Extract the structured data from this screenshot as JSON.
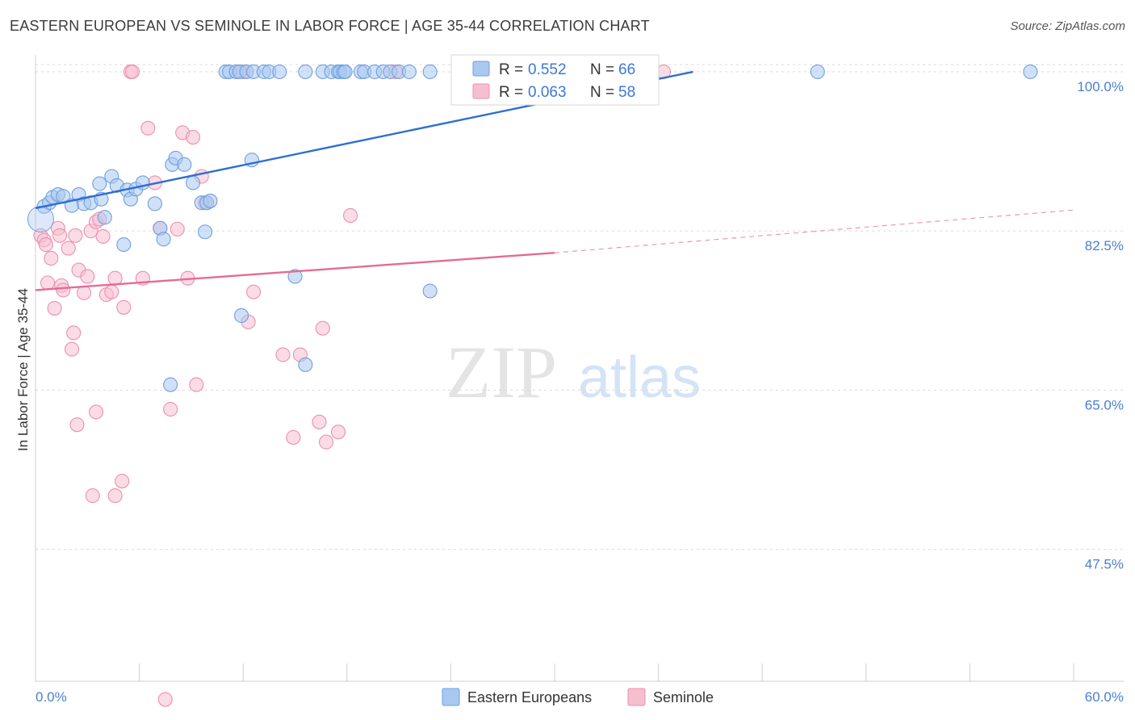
{
  "title": "EASTERN EUROPEAN VS SEMINOLE IN LABOR FORCE | AGE 35-44 CORRELATION CHART",
  "source": "Source: ZipAtlas.com",
  "watermark": {
    "zip": "ZIP",
    "atlas": "atlas"
  },
  "colors": {
    "blue_fill": "#a9c8f0",
    "blue_stroke": "#6f9fe0",
    "blue_line": "#2f6fd0",
    "pink_fill": "#f6bfd0",
    "pink_stroke": "#ec8fb0",
    "pink_line": "#e56a96",
    "grid": "#d9d9d9",
    "tick_text": "#4a7fd0"
  },
  "chart_data": {
    "type": "scatter",
    "title": "EASTERN EUROPEAN VS SEMINOLE IN LABOR FORCE | AGE 35-44 CORRELATION CHART",
    "xlabel": "",
    "ylabel": "In Labor Force | Age 35-44",
    "xlim": [
      0,
      60
    ],
    "ylim": [
      33,
      101.5
    ],
    "x_tick_labels": [
      "0.0%",
      "60.0%"
    ],
    "y_ticks": [
      47.5,
      65.0,
      82.5,
      100.0
    ],
    "y_tick_labels": [
      "47.5%",
      "65.0%",
      "82.5%",
      "100.0%"
    ],
    "grid": true,
    "legend": {
      "placement": "top-center",
      "entries": [
        {
          "r_label": "R = ",
          "r_value": "0.552",
          "n_label": "N = ",
          "n_value": "66"
        },
        {
          "r_label": "R = ",
          "r_value": "0.063",
          "n_label": "N = ",
          "n_value": "58"
        }
      ]
    },
    "series": [
      {
        "name": "Eastern Europeans",
        "trend": {
          "x0": 0,
          "y0": 85.0,
          "x1": 38,
          "y1": 100.0,
          "dashed_to": null
        },
        "points": [
          [
            0.5,
            85.2
          ],
          [
            0.8,
            85.6
          ],
          [
            1.0,
            86.2
          ],
          [
            1.3,
            86.5
          ],
          [
            1.6,
            86.3
          ],
          [
            2.1,
            85.3
          ],
          [
            2.5,
            86.5
          ],
          [
            2.8,
            85.5
          ],
          [
            3.2,
            85.6
          ],
          [
            3.7,
            87.7
          ],
          [
            3.8,
            86.0
          ],
          [
            4.0,
            84.0
          ],
          [
            4.4,
            88.5
          ],
          [
            4.7,
            87.5
          ],
          [
            5.1,
            81.0
          ],
          [
            5.3,
            87.0
          ],
          [
            5.5,
            86.0
          ],
          [
            5.8,
            87.1
          ],
          [
            6.2,
            87.8
          ],
          [
            6.9,
            85.5
          ],
          [
            7.2,
            82.8
          ],
          [
            7.4,
            81.6
          ],
          [
            7.8,
            65.6
          ],
          [
            7.9,
            89.8
          ],
          [
            8.1,
            90.5
          ],
          [
            8.6,
            89.8
          ],
          [
            9.1,
            87.8
          ],
          [
            9.6,
            85.6
          ],
          [
            9.8,
            82.4
          ],
          [
            9.9,
            85.6
          ],
          [
            10.1,
            85.8
          ],
          [
            11.0,
            100
          ],
          [
            11.2,
            100
          ],
          [
            11.6,
            100
          ],
          [
            11.8,
            100
          ],
          [
            11.9,
            73.2
          ],
          [
            12.2,
            100
          ],
          [
            12.5,
            90.3
          ],
          [
            12.6,
            100
          ],
          [
            13.2,
            100
          ],
          [
            13.5,
            100
          ],
          [
            14.1,
            100
          ],
          [
            15.0,
            77.5
          ],
          [
            15.6,
            100
          ],
          [
            15.6,
            67.8
          ],
          [
            16.6,
            100
          ],
          [
            17.1,
            100
          ],
          [
            17.5,
            100
          ],
          [
            17.6,
            100
          ],
          [
            17.8,
            100
          ],
          [
            17.9,
            100
          ],
          [
            18.8,
            100
          ],
          [
            19.0,
            100
          ],
          [
            19.6,
            100
          ],
          [
            20.1,
            100
          ],
          [
            20.5,
            100
          ],
          [
            21.0,
            100
          ],
          [
            21.6,
            100
          ],
          [
            22.8,
            75.9
          ],
          [
            24.6,
            100
          ],
          [
            25.0,
            100
          ],
          [
            22.8,
            100
          ],
          [
            33.6,
            100
          ],
          [
            34.1,
            100
          ],
          [
            45.2,
            100
          ],
          [
            57.5,
            100
          ]
        ]
      },
      {
        "name": "Seminole",
        "trend": {
          "x0": 0,
          "y0": 76.0,
          "x1": 30,
          "y1": 80.1,
          "dashed_to": {
            "x": 60,
            "y": 84.8
          }
        },
        "points": [
          [
            0.3,
            82.0
          ],
          [
            0.5,
            81.5
          ],
          [
            0.6,
            81.0
          ],
          [
            0.7,
            76.8
          ],
          [
            0.9,
            79.5
          ],
          [
            1.1,
            74.0
          ],
          [
            1.3,
            82.8
          ],
          [
            1.4,
            82.0
          ],
          [
            1.5,
            76.5
          ],
          [
            1.6,
            76.0
          ],
          [
            1.9,
            80.6
          ],
          [
            2.1,
            69.5
          ],
          [
            2.2,
            71.3
          ],
          [
            2.3,
            82.0
          ],
          [
            2.4,
            61.2
          ],
          [
            2.5,
            78.2
          ],
          [
            2.8,
            75.7
          ],
          [
            3.0,
            77.5
          ],
          [
            3.2,
            82.5
          ],
          [
            3.3,
            53.4
          ],
          [
            3.5,
            62.6
          ],
          [
            3.5,
            83.5
          ],
          [
            3.7,
            83.8
          ],
          [
            3.9,
            81.9
          ],
          [
            4.1,
            75.5
          ],
          [
            4.4,
            75.8
          ],
          [
            4.6,
            53.4
          ],
          [
            4.6,
            77.3
          ],
          [
            5.0,
            55.0
          ],
          [
            5.1,
            74.1
          ],
          [
            5.5,
            100
          ],
          [
            5.6,
            100
          ],
          [
            6.2,
            77.3
          ],
          [
            6.5,
            93.8
          ],
          [
            6.9,
            87.8
          ],
          [
            7.2,
            82.8
          ],
          [
            7.5,
            31.0
          ],
          [
            7.8,
            62.9
          ],
          [
            8.2,
            82.7
          ],
          [
            8.5,
            93.3
          ],
          [
            8.8,
            77.3
          ],
          [
            9.1,
            92.8
          ],
          [
            9.3,
            65.6
          ],
          [
            9.6,
            88.5
          ],
          [
            9.8,
            85.6
          ],
          [
            12.0,
            100
          ],
          [
            12.3,
            72.5
          ],
          [
            12.6,
            75.8
          ],
          [
            14.3,
            68.9
          ],
          [
            14.9,
            59.8
          ],
          [
            15.3,
            68.9
          ],
          [
            16.4,
            61.5
          ],
          [
            16.6,
            71.8
          ],
          [
            16.8,
            59.3
          ],
          [
            17.5,
            60.4
          ],
          [
            18.2,
            84.2
          ],
          [
            20.8,
            100
          ],
          [
            36.3,
            100
          ]
        ]
      }
    ]
  },
  "bottom_legend": [
    "Eastern Europeans",
    "Seminole"
  ]
}
